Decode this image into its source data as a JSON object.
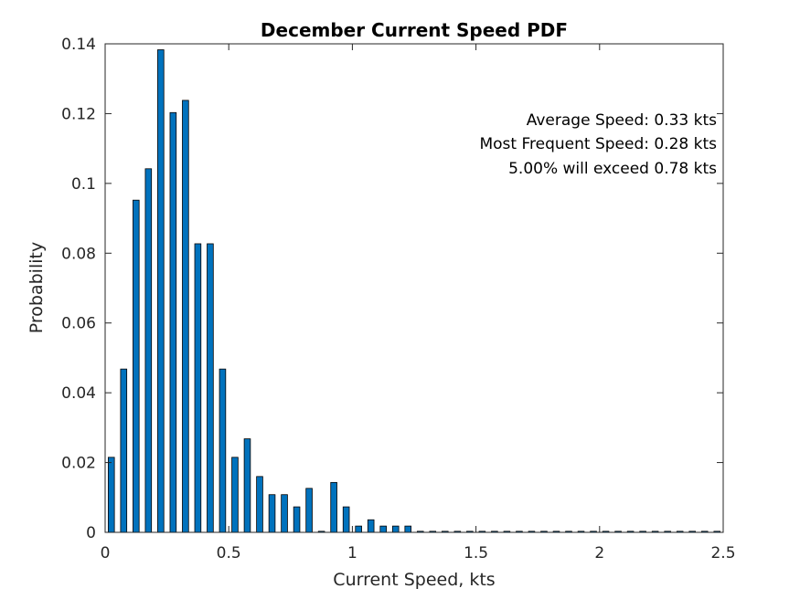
{
  "chart_data": {
    "type": "bar",
    "title": "December Current Speed PDF",
    "xlabel": "Current Speed, kts",
    "ylabel": "Probability",
    "xlim": [
      0,
      2.5
    ],
    "ylim": [
      0,
      0.14
    ],
    "xticks": [
      0,
      0.5,
      1,
      1.5,
      2,
      2.5
    ],
    "xtick_labels": [
      "0",
      "0.5",
      "1",
      "1.5",
      "2",
      "2.5"
    ],
    "yticks": [
      0,
      0.02,
      0.04,
      0.06,
      0.08,
      0.1,
      0.12,
      0.14
    ],
    "ytick_labels": [
      "0",
      "0.02",
      "0.04",
      "0.06",
      "0.08",
      "0.1",
      "0.12",
      "0.14"
    ],
    "grid": false,
    "bar_color": "#0072bd",
    "bar_width": 0.025,
    "x": [
      0.025,
      0.075,
      0.125,
      0.175,
      0.225,
      0.275,
      0.325,
      0.375,
      0.425,
      0.475,
      0.525,
      0.575,
      0.625,
      0.675,
      0.725,
      0.775,
      0.825,
      0.875,
      0.925,
      0.975,
      1.025,
      1.075,
      1.125,
      1.175,
      1.225,
      1.275,
      1.325,
      1.375,
      1.425,
      1.475,
      1.525,
      1.575,
      1.625,
      1.675,
      1.725,
      1.775,
      1.825,
      1.875,
      1.925,
      1.975,
      2.025,
      2.075,
      2.125,
      2.175,
      2.225,
      2.275,
      2.325,
      2.375,
      2.425,
      2.475
    ],
    "values": [
      0.0215,
      0.0468,
      0.0952,
      0.1042,
      0.1383,
      0.1203,
      0.1238,
      0.0827,
      0.0827,
      0.0468,
      0.0215,
      0.0268,
      0.016,
      0.0108,
      0.0108,
      0.0073,
      0.0126,
      0.0003,
      0.0143,
      0.0073,
      0.0018,
      0.0036,
      0.0018,
      0.0018,
      0.0018,
      0.0003,
      0.0003,
      0.0003,
      0.0003,
      0.0003,
      0.0003,
      0.0003,
      0.0003,
      0.0003,
      0.0003,
      0.0003,
      0.0003,
      0.0003,
      0.0003,
      0.0003,
      0.0003,
      0.0003,
      0.0003,
      0.0003,
      0.0003,
      0.0003,
      0.0003,
      0.0003,
      0.0003,
      0.0003
    ],
    "annotations": [
      "Average Speed: 0.33 kts",
      "Most Frequent Speed: 0.28 kts",
      "5.00% will exceed 0.78 kts"
    ]
  }
}
